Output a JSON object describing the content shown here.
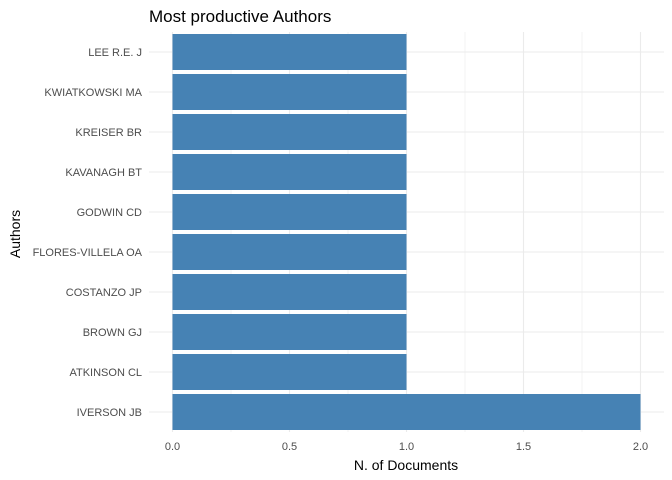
{
  "chart_data": {
    "type": "bar",
    "orientation": "horizontal",
    "title": "Most productive Authors",
    "xlabel": "N. of Documents",
    "ylabel": "Authors",
    "categories": [
      "IVERSON JB",
      "ATKINSON CL",
      "BROWN GJ",
      "COSTANZO JP",
      "FLORES-VILLELA OA",
      "GODWIN CD",
      "KAVANAGH BT",
      "KREISER BR",
      "KWIATKOWSKI MA",
      "LEE R.E. J"
    ],
    "values": [
      2,
      1,
      1,
      1,
      1,
      1,
      1,
      1,
      1,
      1
    ],
    "xlim": [
      0,
      2
    ],
    "xticks": [
      "0.0",
      "0.5",
      "1.0",
      "1.5",
      "2.0"
    ],
    "grid": true,
    "bar_color": "#4682b4",
    "grid_color": "#ebebeb"
  }
}
